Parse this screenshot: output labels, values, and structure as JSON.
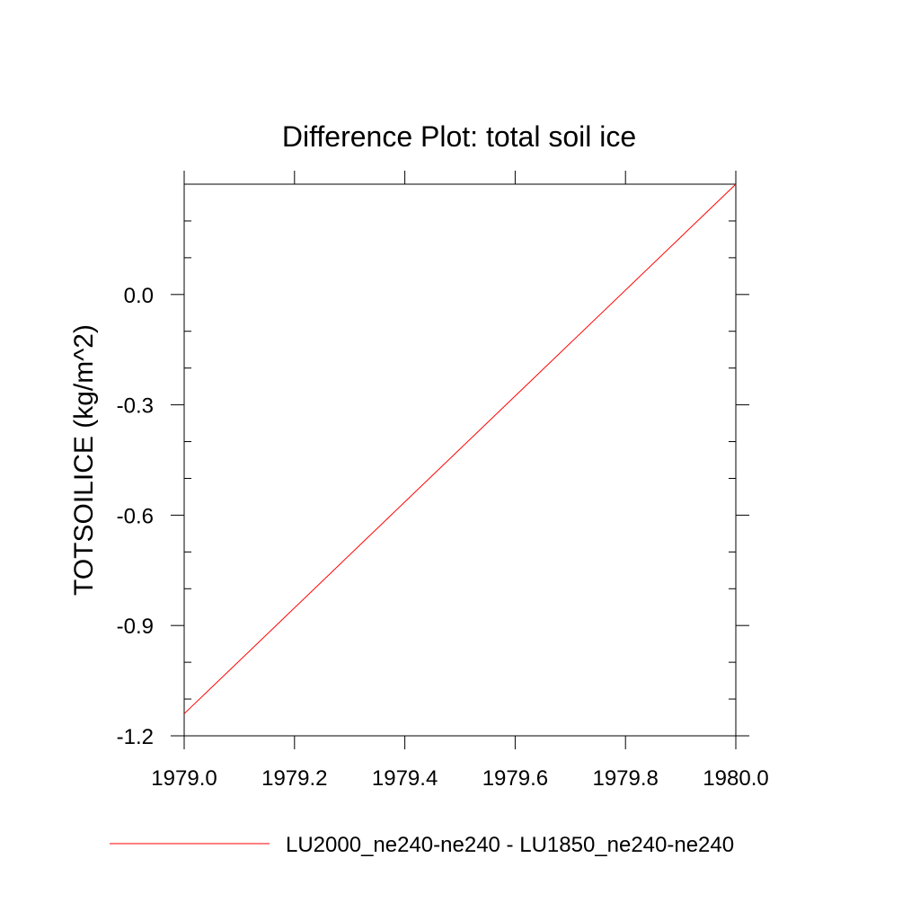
{
  "chart_data": {
    "type": "line",
    "title": "Difference Plot: total soil ice",
    "xlabel": "",
    "ylabel": "TOTSOILICE  (kg/m^2)",
    "xlim": [
      1979.0,
      1980.0
    ],
    "ylim": [
      -1.2,
      0.3
    ],
    "x_ticks": [
      1979.0,
      1979.2,
      1979.4,
      1979.6,
      1979.8,
      1980.0
    ],
    "x_tick_labels": [
      "1979.0",
      "1979.2",
      "1979.4",
      "1979.6",
      "1979.8",
      "1980.0"
    ],
    "y_ticks": [
      -1.2,
      -0.9,
      -0.6,
      -0.3,
      0.0
    ],
    "y_tick_labels": [
      "-1.2",
      "-0.9",
      "-0.6",
      "-0.3",
      "0.0"
    ],
    "y_minor_step": 0.1,
    "x_minor_step": 0.2,
    "grid": false,
    "legend_position": "bottom",
    "series": [
      {
        "name": "LU2000_ne240-ne240 - LU1850_ne240-ne240",
        "color": "#ff0000",
        "x": [
          1979.0,
          1980.0
        ],
        "y": [
          -1.14,
          0.3
        ]
      }
    ]
  }
}
